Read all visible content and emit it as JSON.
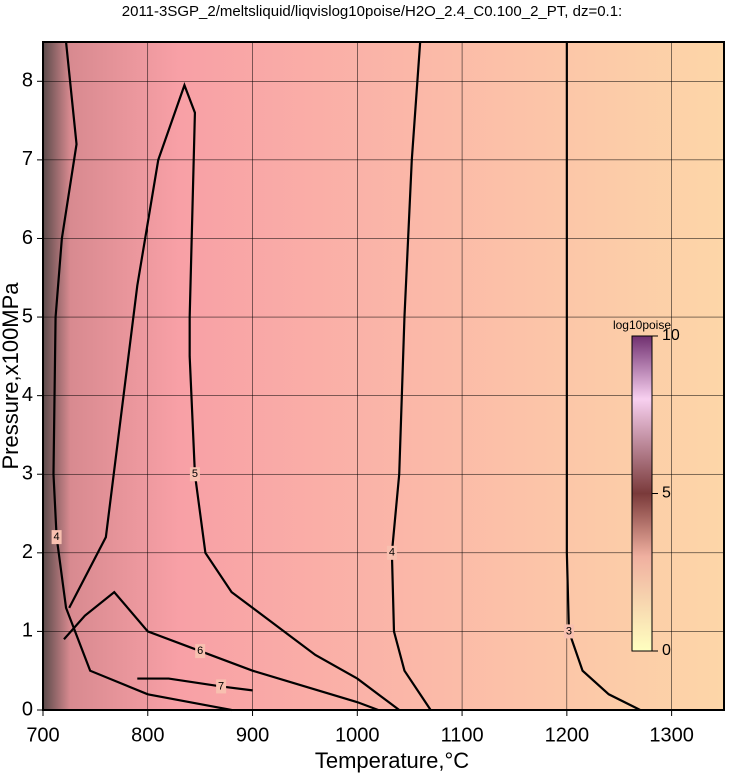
{
  "chart_data": {
    "type": "contour",
    "title": "2011-3SGP_2/meltsliquid/liqvislog10poise/H2O_2.4_C0.100_2_PT, dz=0.1:",
    "x_label": "Temperature,°C",
    "y_label": "Pressure,x100MPa",
    "xlim": [
      700,
      1350
    ],
    "ylim": [
      0,
      8.5
    ],
    "xticks": [
      700,
      800,
      900,
      1000,
      1100,
      1200,
      1300
    ],
    "yticks": [
      0,
      1,
      2,
      3,
      4,
      5,
      6,
      7,
      8
    ],
    "grid": true,
    "contours": [
      {
        "level": 3,
        "x": [
          1200,
          1200,
          1200,
          1200,
          1202,
          1215,
          1240,
          1270
        ],
        "y": [
          8.5,
          7,
          5,
          2,
          1,
          0.5,
          0.2,
          0
        ]
      },
      {
        "level": 4,
        "x": [
          1060,
          1052,
          1045,
          1040,
          1033,
          1035,
          1045,
          1060,
          1070
        ],
        "y": [
          8.5,
          7,
          5,
          3,
          2,
          1,
          0.5,
          0.2,
          0
        ]
      },
      {
        "level": 5,
        "x": [
          725,
          760,
          790,
          810,
          835,
          845,
          840,
          840,
          845,
          855,
          880,
          920,
          960,
          1000,
          1030,
          1040
        ],
        "y": [
          1.3,
          2.2,
          5.4,
          7,
          7.95,
          7.6,
          5,
          4.5,
          3,
          2,
          1.5,
          1.1,
          0.7,
          0.4,
          0.1,
          0
        ]
      },
      {
        "level": 6,
        "x": [
          720,
          740,
          768,
          800,
          850,
          900,
          950,
          1000,
          1020
        ],
        "y": [
          0.9,
          1.2,
          1.5,
          1.0,
          0.75,
          0.5,
          0.3,
          0.1,
          0
        ]
      },
      {
        "level": 7,
        "x": [
          790,
          820,
          870,
          900
        ],
        "y": [
          0.4,
          0.4,
          0.3,
          0.25
        ]
      },
      {
        "level": 4,
        "x": [
          722,
          732,
          718,
          712,
          710,
          713,
          722,
          745,
          800,
          860,
          880
        ],
        "y": [
          8.5,
          7.2,
          6,
          5,
          3,
          2.2,
          1.3,
          0.5,
          0.2,
          0.05,
          0
        ]
      }
    ],
    "colorbar": {
      "label": "log10poise",
      "lim": [
        0,
        10
      ],
      "ticks": [
        0,
        5,
        10
      ]
    }
  }
}
